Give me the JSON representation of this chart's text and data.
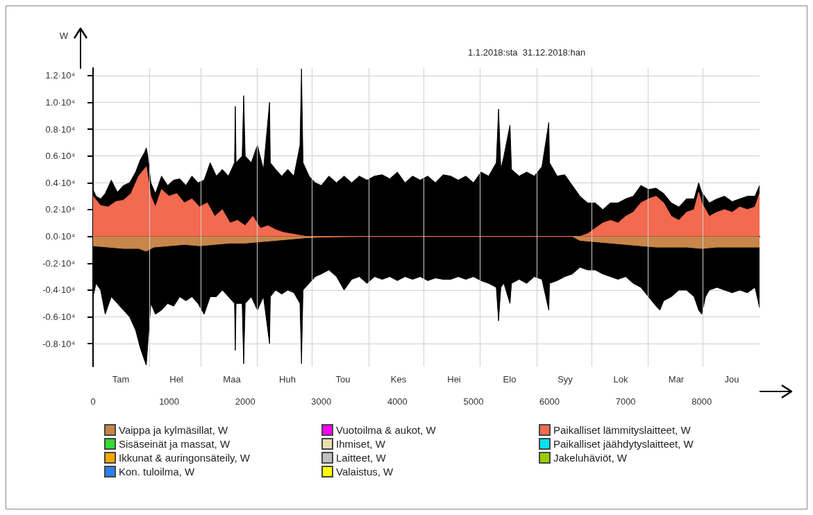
{
  "chart_data": {
    "type": "area",
    "ylabel": "W",
    "annotations": [
      "1.1.2018:sta  31.12.2018:han",
      "Tam",
      "Hel",
      "Maa",
      "Huh",
      "Tou",
      "Kes",
      "Hei",
      "Elo",
      "Syy",
      "Lok",
      "Mar",
      "Jou"
    ],
    "ref_lines": [
      {
        "axis": "x",
        "value": 744,
        "color": "#cfcfcf"
      },
      {
        "axis": "x",
        "value": 1416,
        "color": "#cfcfcf"
      },
      {
        "axis": "x",
        "value": 2160,
        "color": "#cfcfcf"
      },
      {
        "axis": "x",
        "value": 2880,
        "color": "#cfcfcf"
      },
      {
        "axis": "x",
        "value": 3624,
        "color": "#cfcfcf"
      },
      {
        "axis": "x",
        "value": 4344,
        "color": "#cfcfcf"
      },
      {
        "axis": "x",
        "value": 5088,
        "color": "#cfcfcf"
      },
      {
        "axis": "x",
        "value": 5832,
        "color": "#cfcfcf"
      },
      {
        "axis": "x",
        "value": 6552,
        "color": "#cfcfcf"
      },
      {
        "axis": "x",
        "value": 7296,
        "color": "#cfcfcf"
      },
      {
        "axis": "x",
        "value": 8016,
        "color": "#cfcfcf"
      }
    ],
    "xlim": [
      0,
      8760
    ],
    "xticks": [
      0,
      1000,
      2000,
      3000,
      4000,
      5000,
      6000,
      7000,
      8000
    ],
    "ylim": [
      -9700,
      12560
    ],
    "yticks": [
      {
        "value": -8000,
        "label": "-0.8·10⁴"
      },
      {
        "value": -6000,
        "label": "-0.6·10⁴"
      },
      {
        "value": -4000,
        "label": "-0.4·10⁴"
      },
      {
        "value": -2000,
        "label": "-0.2·10⁴"
      },
      {
        "value": 0,
        "label": "0.0·10⁴"
      },
      {
        "value": 2000,
        "label": "0.2·10⁴"
      },
      {
        "value": 4000,
        "label": "0.4·10⁴"
      },
      {
        "value": 6000,
        "label": "0.6·10⁴"
      },
      {
        "value": 8000,
        "label": "0.8·10⁴"
      },
      {
        "value": 10000,
        "label": "1.0·10⁴"
      },
      {
        "value": 12000,
        "label": "1.2·10⁴"
      }
    ],
    "grid": true,
    "legend": "bottom",
    "series": [
      {
        "color": "#000000",
        "x": [
          0,
          40,
          100,
          160,
          240,
          320,
          400,
          480,
          560,
          620,
          680,
          700,
          720,
          760,
          820,
          900,
          980,
          1060,
          1140,
          1220,
          1300,
          1380,
          1460,
          1540,
          1620,
          1700,
          1780,
          1860,
          1870,
          1880,
          1960,
          1980,
          2000,
          2080,
          2160,
          2240,
          2320,
          2330,
          2400,
          2480,
          2560,
          2640,
          2720,
          2740,
          2760,
          2840,
          2920,
          3000,
          3100,
          3200,
          3300,
          3400,
          3500,
          3600,
          3700,
          3800,
          3900,
          4000,
          4100,
          4200,
          4300,
          4400,
          4500,
          4600,
          4700,
          4800,
          4900,
          5000,
          5100,
          5200,
          5300,
          5330,
          5360,
          5400,
          5480,
          5500,
          5600,
          5700,
          5800,
          5900,
          5990,
          6000,
          6100,
          6200,
          6300,
          6400,
          6500,
          6600,
          6700,
          6800,
          6900,
          7000,
          7100,
          7200,
          7300,
          7400,
          7500,
          7600,
          7700,
          7800,
          7900,
          7960,
          8000,
          8100,
          8200,
          8300,
          8400,
          8500,
          8600,
          8700,
          8760
        ],
        "values": [
          3500,
          3000,
          2800,
          3200,
          4200,
          3300,
          3800,
          4000,
          4800,
          5700,
          6300,
          6600,
          6000,
          4000,
          3200,
          4500,
          3800,
          4200,
          4300,
          3800,
          4500,
          4000,
          4200,
          5500,
          4500,
          5000,
          4500,
          5500,
          9700,
          5500,
          6000,
          10500,
          6000,
          5500,
          6800,
          5000,
          10000,
          5500,
          5000,
          4500,
          5000,
          4500,
          6800,
          12500,
          5500,
          4500,
          4000,
          3800,
          4500,
          4000,
          4500,
          4000,
          4500,
          4200,
          4500,
          4600,
          4300,
          4800,
          4000,
          4500,
          4200,
          4500,
          4000,
          4600,
          4500,
          4200,
          4500,
          4000,
          4800,
          4500,
          5500,
          9500,
          5000,
          6000,
          8300,
          5000,
          4500,
          4800,
          4500,
          5200,
          8500,
          5500,
          4500,
          4600,
          3800,
          3000,
          2500,
          2500,
          2000,
          2500,
          2500,
          2800,
          3000,
          3800,
          3500,
          3600,
          3200,
          2500,
          2200,
          2800,
          2800,
          4000,
          3300,
          2500,
          2800,
          3000,
          2600,
          2800,
          3000,
          3000,
          3800
        ]
      },
      {
        "color": "#000000",
        "x": [
          0,
          40,
          100,
          160,
          240,
          320,
          400,
          480,
          560,
          620,
          680,
          700,
          720,
          760,
          820,
          900,
          980,
          1060,
          1140,
          1220,
          1300,
          1380,
          1460,
          1540,
          1620,
          1700,
          1780,
          1860,
          1870,
          1880,
          1960,
          1980,
          2000,
          2080,
          2160,
          2240,
          2320,
          2330,
          2400,
          2480,
          2560,
          2640,
          2720,
          2740,
          2760,
          2840,
          2920,
          3000,
          3100,
          3200,
          3300,
          3400,
          3500,
          3600,
          3700,
          3800,
          3900,
          4000,
          4100,
          4200,
          4300,
          4400,
          4500,
          4600,
          4700,
          4800,
          4900,
          5000,
          5100,
          5200,
          5300,
          5330,
          5360,
          5400,
          5480,
          5500,
          5600,
          5700,
          5800,
          5900,
          5990,
          6000,
          6100,
          6200,
          6300,
          6400,
          6500,
          6600,
          6700,
          6800,
          6900,
          7000,
          7100,
          7200,
          7300,
          7400,
          7450,
          7500,
          7600,
          7700,
          7800,
          7900,
          7960,
          8000,
          8050,
          8100,
          8200,
          8300,
          8400,
          8500,
          8600,
          8700,
          8760
        ],
        "values": [
          -4500,
          -3500,
          -4000,
          -5800,
          -4500,
          -5000,
          -5500,
          -6000,
          -7000,
          -8300,
          -9300,
          -9600,
          -8000,
          -5000,
          -5800,
          -5500,
          -5000,
          -5200,
          -4500,
          -4800,
          -4500,
          -5000,
          -5800,
          -4500,
          -4500,
          -4000,
          -4500,
          -5000,
          -8500,
          -5000,
          -5000,
          -9500,
          -5000,
          -4500,
          -5500,
          -4500,
          -8000,
          -4500,
          -4000,
          -4300,
          -4000,
          -4200,
          -5000,
          -9500,
          -4000,
          -3500,
          -3000,
          -2800,
          -2500,
          -3000,
          -4000,
          -3200,
          -3000,
          -3500,
          -3000,
          -3200,
          -3000,
          -3300,
          -3000,
          -3200,
          -3000,
          -3300,
          -3100,
          -3200,
          -3200,
          -3000,
          -3200,
          -3000,
          -3300,
          -3500,
          -3800,
          -6300,
          -3800,
          -3500,
          -5000,
          -3500,
          -3200,
          -3500,
          -3000,
          -3200,
          -5500,
          -3500,
          -3300,
          -3000,
          -2800,
          -2300,
          -2500,
          -2500,
          -2800,
          -3000,
          -3200,
          -3000,
          -3500,
          -3800,
          -4500,
          -5200,
          -5500,
          -4800,
          -4500,
          -4000,
          -4000,
          -4500,
          -5500,
          -5800,
          -4500,
          -4000,
          -3800,
          -4000,
          -4200,
          -4000,
          -4200,
          -3800,
          -5300
        ]
      },
      {
        "name": "Vaippa ja kylmäsillat, W",
        "color": "#c8864a",
        "x": [
          0,
          200,
          400,
          600,
          700,
          800,
          1000,
          1200,
          1400,
          1600,
          1800,
          2000,
          2200,
          2400,
          2600,
          2800,
          3000,
          3500,
          6300,
          6400,
          6600,
          6800,
          7000,
          7200,
          7400,
          7600,
          7800,
          8000,
          8200,
          8400,
          8600,
          8760
        ],
        "values": [
          -700,
          -800,
          -900,
          -900,
          -1100,
          -800,
          -700,
          -600,
          -700,
          -600,
          -500,
          -500,
          -400,
          -300,
          -200,
          -100,
          -50,
          0,
          0,
          -300,
          -400,
          -500,
          -600,
          -700,
          -800,
          -800,
          -800,
          -900,
          -800,
          -800,
          -800,
          -800
        ]
      },
      {
        "name": "Sisäseinät ja massat, W",
        "color": "#33dd33"
      },
      {
        "name": "Ikkunat & auringonsäteily, W",
        "color": "#f5a800"
      },
      {
        "name": "Kon. tuloilma, W",
        "color": "#2f7fe8"
      },
      {
        "name": "Vuotoilma & aukot, W",
        "color": "#ff00ff"
      },
      {
        "name": "Ihmiset, W",
        "color": "#e8e0b0"
      },
      {
        "name": "Laitteet, W",
        "color": "#c0c0c0"
      },
      {
        "name": "Valaistus, W",
        "color": "#ffff00"
      },
      {
        "name": "Paikalliset lämmityslaitteet, W",
        "color": "#f26a4f",
        "x": [
          0,
          100,
          200,
          300,
          400,
          500,
          600,
          700,
          760,
          820,
          900,
          1000,
          1100,
          1200,
          1300,
          1400,
          1500,
          1600,
          1700,
          1800,
          1900,
          2000,
          2100,
          2200,
          2300,
          2400,
          2500,
          2600,
          2700,
          2800,
          6400,
          6500,
          6600,
          6700,
          6800,
          6900,
          7000,
          7100,
          7200,
          7300,
          7400,
          7500,
          7600,
          7700,
          7800,
          7900,
          7960,
          8000,
          8100,
          8200,
          8300,
          8400,
          8500,
          8600,
          8700,
          8760
        ],
        "values": [
          3000,
          2300,
          2200,
          2600,
          2700,
          3200,
          4500,
          5200,
          3000,
          2200,
          3500,
          3000,
          3200,
          2500,
          2800,
          2200,
          2500,
          1500,
          2000,
          1000,
          1200,
          800,
          1500,
          600,
          800,
          500,
          300,
          200,
          100,
          0,
          0,
          200,
          600,
          1000,
          1200,
          1000,
          1500,
          1800,
          2500,
          2800,
          3000,
          2500,
          1500,
          1200,
          1800,
          2000,
          3300,
          2500,
          1500,
          1800,
          2000,
          1800,
          2200,
          2000,
          2200,
          3200
        ]
      },
      {
        "name": "Paikalliset jäähdytyslaitteet, W",
        "color": "#00e5ee"
      },
      {
        "name": "Jakeluhäviöt, W",
        "color": "#99cc00"
      }
    ]
  }
}
